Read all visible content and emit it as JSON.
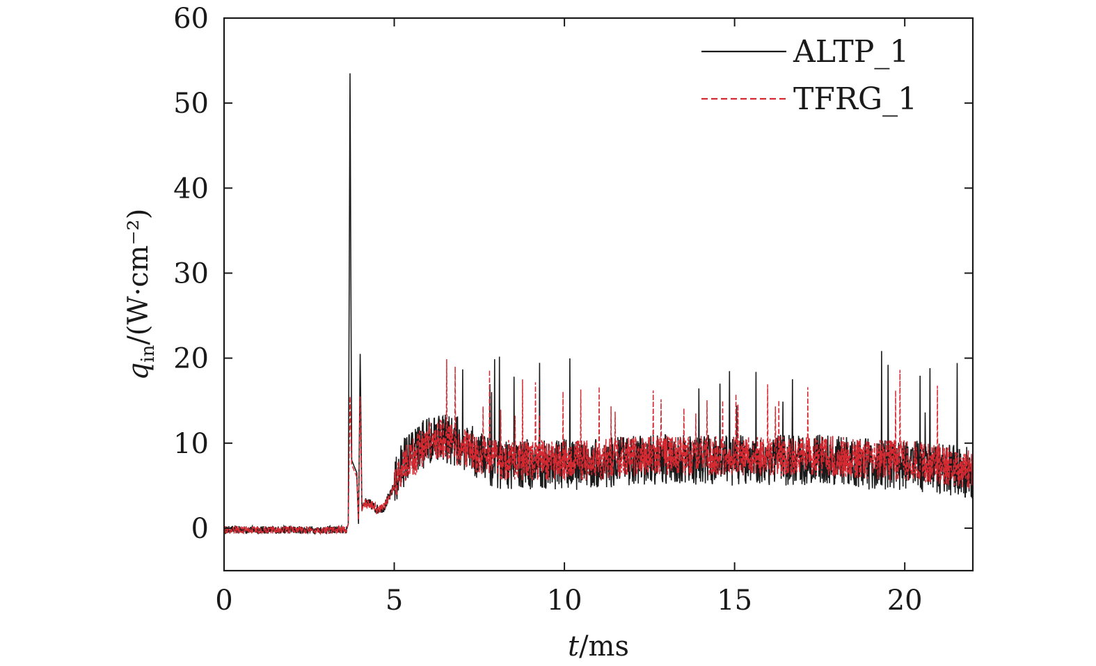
{
  "chart_data": {
    "type": "line",
    "title": "",
    "xlabel": "t/ms",
    "ylabel": "q_in/(W·cm⁻²)",
    "xlim": [
      0,
      22
    ],
    "ylim": [
      -5,
      60
    ],
    "xticks": [
      0,
      5,
      10,
      15,
      20
    ],
    "yticks": [
      0,
      10,
      20,
      30,
      40,
      50,
      60
    ],
    "grid": false,
    "legend_position": "top-right",
    "series": [
      {
        "name": "ALTP_1",
        "color": "#1a1a1a",
        "dash": "solid",
        "x": [
          0,
          3.6,
          3.65,
          3.7,
          3.75,
          3.8,
          3.85,
          3.9,
          3.95,
          4.0,
          4.05,
          4.1,
          4.3,
          4.5,
          4.7,
          4.9,
          5.1,
          5.3,
          5.6,
          6.0,
          6.3,
          6.6,
          7.0,
          7.5,
          8.0,
          8.5,
          9.0,
          9.5,
          10,
          11,
          12,
          13,
          14,
          15,
          16,
          17,
          18,
          19,
          20,
          21,
          22
        ],
        "y": [
          -0.2,
          -0.2,
          0.5,
          53.5,
          8,
          7.5,
          7,
          6.5,
          0.5,
          20.5,
          2,
          3,
          2.8,
          2.2,
          2.5,
          4,
          6,
          8,
          9,
          10.5,
          11,
          10.5,
          10,
          8.5,
          7.5,
          7.5,
          7.5,
          7.5,
          7.5,
          7.5,
          8,
          8,
          8,
          8,
          8,
          8,
          8,
          7.5,
          7.5,
          7,
          6.5
        ],
        "noise": 3.0
      },
      {
        "name": "TFRG_1",
        "color": "#d62a32",
        "dash": "dashed",
        "x": [
          0,
          3.6,
          3.65,
          3.7,
          3.75,
          3.8,
          3.85,
          3.9,
          3.95,
          4.0,
          4.05,
          4.1,
          4.3,
          4.5,
          4.7,
          4.9,
          5.1,
          5.3,
          5.6,
          6.0,
          6.3,
          6.6,
          7.0,
          7.5,
          8.0,
          8.5,
          9.0,
          9.5,
          10,
          11,
          12,
          13,
          14,
          15,
          16,
          17,
          18,
          19,
          20,
          21,
          22
        ],
        "y": [
          -0.2,
          -0.2,
          0.5,
          15.5,
          7.5,
          7,
          6.5,
          6,
          1,
          15.5,
          2,
          3,
          2.8,
          2.2,
          2.5,
          4,
          6,
          7.5,
          8.5,
          10,
          10.5,
          10,
          9.5,
          8.5,
          8,
          8,
          8,
          8,
          8,
          8,
          8.5,
          8.5,
          8.5,
          8.5,
          8.5,
          8.5,
          8.5,
          8,
          8,
          7.5,
          7
        ],
        "noise": 2.4
      }
    ]
  }
}
